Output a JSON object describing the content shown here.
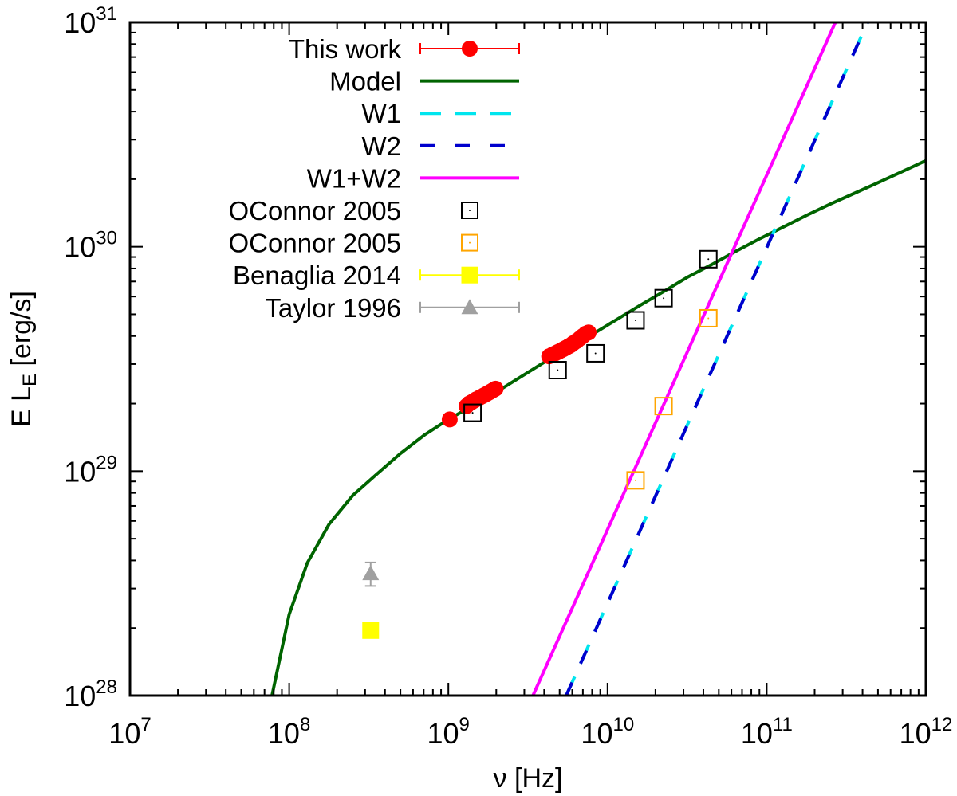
{
  "chart_data": {
    "type": "scatter",
    "title": "",
    "xlabel": "ν [Hz]",
    "ylabel_main": "E L",
    "ylabel_sub": "E",
    "ylabel_tail": " [erg/s]",
    "xscale": "log",
    "yscale": "log",
    "xlim": [
      10000000.0,
      1000000000000.0
    ],
    "ylim": [
      1e+28,
      1e+31
    ],
    "grid": false,
    "legend_position": "top-left",
    "x_ticks": [
      {
        "base": "10",
        "exp": "7"
      },
      {
        "base": "10",
        "exp": "8"
      },
      {
        "base": "10",
        "exp": "9"
      },
      {
        "base": "10",
        "exp": "10"
      },
      {
        "base": "10",
        "exp": "11"
      },
      {
        "base": "10",
        "exp": "12"
      }
    ],
    "y_ticks": [
      {
        "base": "10",
        "exp": "28"
      },
      {
        "base": "10",
        "exp": "29"
      },
      {
        "base": "10",
        "exp": "30"
      },
      {
        "base": "10",
        "exp": "31"
      }
    ],
    "series": [
      {
        "name": "This work",
        "kind": "points",
        "marker": "circle",
        "color": "#ff0000",
        "points": [
          [
            1020000000.0,
            1.7e+29
          ],
          [
            1300000000.0,
            1.95e+29
          ],
          [
            1350000000.0,
            2e+29
          ],
          [
            1400000000.0,
            2.03e+29
          ],
          [
            1450000000.0,
            2.06e+29
          ],
          [
            1500000000.0,
            2.09e+29
          ],
          [
            1560000000.0,
            2.12e+29
          ],
          [
            1620000000.0,
            2.15e+29
          ],
          [
            1680000000.0,
            2.18e+29
          ],
          [
            1740000000.0,
            2.21e+29
          ],
          [
            1800000000.0,
            2.24e+29
          ],
          [
            1860000000.0,
            2.27e+29
          ],
          [
            1920000000.0,
            2.3e+29
          ],
          [
            1980000000.0,
            2.33e+29
          ],
          [
            4300000000.0,
            3.25e+29
          ],
          [
            4500000000.0,
            3.3e+29
          ],
          [
            4700000000.0,
            3.35e+29
          ],
          [
            4900000000.0,
            3.4e+29
          ],
          [
            5100000000.0,
            3.45e+29
          ],
          [
            5300000000.0,
            3.5e+29
          ],
          [
            5500000000.0,
            3.55e+29
          ],
          [
            5700000000.0,
            3.6e+29
          ],
          [
            5900000000.0,
            3.65e+29
          ],
          [
            6100000000.0,
            3.72e+29
          ],
          [
            6400000000.0,
            3.8e+29
          ],
          [
            6700000000.0,
            3.9e+29
          ],
          [
            7000000000.0,
            4e+29
          ],
          [
            7300000000.0,
            4.1e+29
          ],
          [
            7600000000.0,
            4.15e+29
          ]
        ]
      },
      {
        "name": "Model",
        "kind": "curve",
        "style": "solid",
        "color": "#006400",
        "points": [
          [
            78000000.0,
            1e+28
          ],
          [
            100000000.0,
            2.3e+28
          ],
          [
            130000000.0,
            3.9e+28
          ],
          [
            178000000.0,
            5.8e+28
          ],
          [
            251000000.0,
            7.8e+28
          ],
          [
            355000000.0,
            9.7e+28
          ],
          [
            501000000.0,
            1.2e+29
          ],
          [
            708000000.0,
            1.45e+29
          ],
          [
            1000000000.0,
            1.7e+29
          ],
          [
            1410000000.0,
            1.95e+29
          ],
          [
            2000000000.0,
            2.25e+29
          ],
          [
            2820000000.0,
            2.62e+29
          ],
          [
            3980000000.0,
            3.05e+29
          ],
          [
            5620000000.0,
            3.5e+29
          ],
          [
            7940000000.0,
            4.05e+29
          ],
          [
            11200000000.0,
            4.7e+29
          ],
          [
            15800000000.0,
            5.45e+29
          ],
          [
            22400000000.0,
            6.3e+29
          ],
          [
            31600000000.0,
            7.3e+29
          ],
          [
            44700000000.0,
            8.3e+29
          ],
          [
            63100000000.0,
            9.5e+29
          ],
          [
            89100000000.0,
            1.08e+30
          ],
          [
            126000000000.0,
            1.22e+30
          ],
          [
            178000000000.0,
            1.38e+30
          ],
          [
            251000000000.0,
            1.55e+30
          ],
          [
            355000000000.0,
            1.73e+30
          ],
          [
            501000000000.0,
            1.93e+30
          ],
          [
            708000000000.0,
            2.16e+30
          ],
          [
            1000000000000.0,
            2.42e+30
          ]
        ]
      },
      {
        "name": "W1",
        "kind": "curve",
        "style": "dashed",
        "color": "#00e5ee",
        "points": [
          [
            5500000000.0,
            1e+28
          ],
          [
            430000000000.0,
            1e+31
          ]
        ]
      },
      {
        "name": "W2",
        "kind": "curve",
        "style": "dashed",
        "color": "#0000cd",
        "points": [
          [
            5500000000.0,
            1e+28
          ],
          [
            430000000000.0,
            1e+31
          ]
        ]
      },
      {
        "name": "W1+W2",
        "kind": "curve",
        "style": "solid",
        "color": "#ff00ff",
        "points": [
          [
            3400000000.0,
            1e+28
          ],
          [
            270000000000.0,
            1e+31
          ]
        ]
      },
      {
        "name": "OConnor 2005",
        "kind": "points",
        "marker": "open-square",
        "color": "#000000",
        "points": [
          [
            1420000000.0,
            1.82e+29
          ],
          [
            4860000000.0,
            2.82e+29
          ],
          [
            8400000000.0,
            3.35e+29
          ],
          [
            15000000000.0,
            4.7e+29
          ],
          [
            22500000000.0,
            5.9e+29
          ],
          [
            43000000000.0,
            8.8e+29
          ]
        ]
      },
      {
        "name": "OConnor 2005",
        "kind": "points",
        "marker": "open-square",
        "color": "#ffa500",
        "points": [
          [
            15000000000.0,
            9.1e+28
          ],
          [
            22500000000.0,
            1.95e+29
          ],
          [
            43000000000.0,
            4.8e+29
          ]
        ]
      },
      {
        "name": "Benaglia 2014",
        "kind": "points",
        "marker": "filled-square",
        "color": "#ffff00",
        "points": [
          [
            325000000.0,
            1.95e+28
          ]
        ]
      },
      {
        "name": "Taylor 1996",
        "kind": "points",
        "marker": "triangle",
        "color": "#a0a0a0",
        "points": [
          [
            325000000.0,
            3.5e+28
          ]
        ],
        "yerr": [
          [
            3.08e+28,
            3.92e+28
          ]
        ]
      }
    ]
  }
}
